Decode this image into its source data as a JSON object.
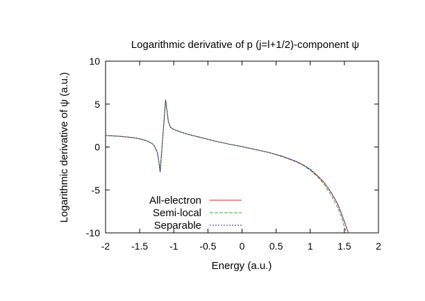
{
  "chart_data": {
    "type": "line",
    "title": "Logarithmic derivative of p (j=l+1/2)-component ψ",
    "xlabel": "Energy (a.u.)",
    "ylabel": "Logarithmic derivative of ψ (a.u.)",
    "xlim": [
      -2,
      2
    ],
    "ylim": [
      -10,
      10
    ],
    "x_ticks": [
      -2,
      -1.5,
      -1,
      -0.5,
      0,
      0.5,
      1,
      1.5,
      2
    ],
    "x_tick_labels": [
      "-2",
      "-1.5",
      "-1",
      "-0.5",
      "0",
      "0.5",
      "1",
      "1.5",
      "2"
    ],
    "y_ticks": [
      -10,
      -5,
      0,
      5,
      10
    ],
    "y_tick_labels": [
      "-10",
      "-5",
      "0",
      "5",
      "10"
    ],
    "grid": false,
    "legend_position": "bottom-left",
    "series": [
      {
        "name": "All-electron",
        "color": "#e41a1c",
        "dash": "solid",
        "segments": [
          [
            [
              -2.0,
              1.35
            ],
            [
              -1.8,
              1.25
            ],
            [
              -1.6,
              1.1
            ],
            [
              -1.5,
              0.95
            ],
            [
              -1.4,
              0.75
            ],
            [
              -1.35,
              0.55
            ],
            [
              -1.3,
              0.3
            ],
            [
              -1.27,
              -0.1
            ],
            [
              -1.24,
              -0.7
            ],
            [
              -1.22,
              -1.6
            ],
            [
              -1.2,
              -2.9
            ]
          ],
          [
            [
              -1.2,
              -2.9
            ],
            [
              -1.12,
              5.5
            ]
          ],
          [
            [
              -1.12,
              5.5
            ],
            [
              -1.08,
              3.0
            ],
            [
              -1.05,
              2.3
            ],
            [
              -1.0,
              2.05
            ],
            [
              -0.9,
              1.75
            ],
            [
              -0.8,
              1.5
            ],
            [
              -0.6,
              1.1
            ],
            [
              -0.4,
              0.7
            ],
            [
              -0.2,
              0.35
            ],
            [
              0.0,
              0.05
            ],
            [
              0.2,
              -0.3
            ],
            [
              0.4,
              -0.65
            ],
            [
              0.6,
              -1.1
            ],
            [
              0.8,
              -1.7
            ],
            [
              0.9,
              -2.1
            ],
            [
              1.0,
              -2.6
            ],
            [
              1.1,
              -3.3
            ],
            [
              1.2,
              -4.1
            ],
            [
              1.3,
              -5.2
            ],
            [
              1.4,
              -6.6
            ],
            [
              1.45,
              -7.6
            ],
            [
              1.5,
              -8.7
            ],
            [
              1.55,
              -9.8
            ],
            [
              1.56,
              -10.0
            ]
          ]
        ]
      },
      {
        "name": "Semi-local",
        "color": "#2ca02c",
        "dash": "dashed",
        "segments": [
          [
            [
              -2.0,
              1.35
            ],
            [
              -1.8,
              1.25
            ],
            [
              -1.6,
              1.1
            ],
            [
              -1.5,
              0.95
            ],
            [
              -1.4,
              0.75
            ],
            [
              -1.35,
              0.55
            ],
            [
              -1.3,
              0.3
            ],
            [
              -1.27,
              -0.1
            ],
            [
              -1.24,
              -0.7
            ],
            [
              -1.22,
              -1.6
            ],
            [
              -1.2,
              -2.9
            ]
          ],
          [
            [
              -1.2,
              -2.9
            ],
            [
              -1.12,
              5.5
            ]
          ],
          [
            [
              -1.12,
              5.5
            ],
            [
              -1.08,
              3.0
            ],
            [
              -1.05,
              2.3
            ],
            [
              -1.0,
              2.05
            ],
            [
              -0.9,
              1.75
            ],
            [
              -0.8,
              1.5
            ],
            [
              -0.6,
              1.1
            ],
            [
              -0.4,
              0.7
            ],
            [
              -0.2,
              0.35
            ],
            [
              0.0,
              0.05
            ],
            [
              0.2,
              -0.3
            ],
            [
              0.4,
              -0.65
            ],
            [
              0.6,
              -1.15
            ],
            [
              0.8,
              -1.75
            ],
            [
              0.9,
              -2.15
            ],
            [
              1.0,
              -2.7
            ],
            [
              1.1,
              -3.4
            ],
            [
              1.2,
              -4.3
            ],
            [
              1.3,
              -5.5
            ],
            [
              1.4,
              -7.0
            ],
            [
              1.45,
              -8.0
            ],
            [
              1.5,
              -9.3
            ],
            [
              1.53,
              -10.0
            ]
          ]
        ]
      },
      {
        "name": "Separable",
        "color": "#1f1fb4",
        "dash": "dotted",
        "segments": [
          [
            [
              -2.0,
              1.35
            ],
            [
              -1.8,
              1.25
            ],
            [
              -1.6,
              1.1
            ],
            [
              -1.5,
              0.95
            ],
            [
              -1.4,
              0.75
            ],
            [
              -1.35,
              0.55
            ],
            [
              -1.3,
              0.3
            ],
            [
              -1.27,
              -0.1
            ],
            [
              -1.24,
              -0.7
            ],
            [
              -1.22,
              -1.6
            ],
            [
              -1.2,
              -2.9
            ]
          ],
          [
            [
              -1.2,
              -2.9
            ],
            [
              -1.12,
              5.5
            ]
          ],
          [
            [
              -1.12,
              5.5
            ],
            [
              -1.08,
              3.0
            ],
            [
              -1.05,
              2.3
            ],
            [
              -1.0,
              2.05
            ],
            [
              -0.9,
              1.75
            ],
            [
              -0.8,
              1.5
            ],
            [
              -0.6,
              1.1
            ],
            [
              -0.4,
              0.7
            ],
            [
              -0.2,
              0.35
            ],
            [
              0.0,
              0.05
            ],
            [
              0.2,
              -0.3
            ],
            [
              0.4,
              -0.65
            ],
            [
              0.6,
              -1.1
            ],
            [
              0.8,
              -1.7
            ],
            [
              0.9,
              -2.1
            ],
            [
              1.0,
              -2.6
            ],
            [
              1.1,
              -3.3
            ],
            [
              1.2,
              -4.1
            ],
            [
              1.3,
              -5.2
            ],
            [
              1.4,
              -6.6
            ],
            [
              1.45,
              -7.6
            ],
            [
              1.5,
              -8.7
            ],
            [
              1.55,
              -9.8
            ],
            [
              1.56,
              -10.0
            ]
          ]
        ]
      }
    ]
  }
}
